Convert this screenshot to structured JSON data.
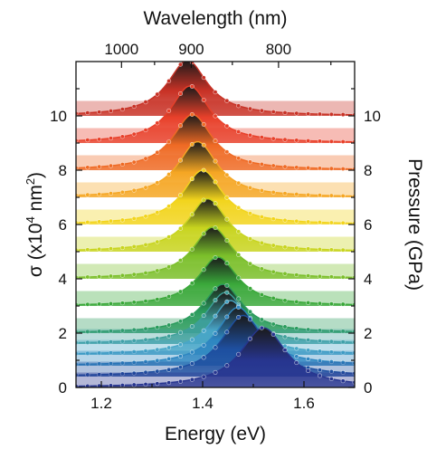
{
  "chart_data": {
    "type": "area",
    "title": "",
    "xlabel": "Energy (eV)",
    "ylabel_left": "σ (x10⁴ nm²)",
    "ylabel_right": "Pressure (GPa)",
    "xlabel_top": "Wavelength (nm)",
    "xlim": [
      1.15,
      1.7
    ],
    "ylim": [
      0,
      12
    ],
    "xticks": [
      1.2,
      1.4,
      1.6
    ],
    "xtick_labels": [
      "1.2",
      "1.4",
      "1.6"
    ],
    "yticks_left": [
      0,
      2,
      4,
      6,
      8,
      10
    ],
    "yticks_left_labels": [
      "0",
      "2",
      "4",
      "6",
      "8",
      "10"
    ],
    "yticks_right": [
      0,
      2,
      4,
      6,
      8,
      10
    ],
    "yticks_right_labels": [
      "0",
      "2",
      "4",
      "6",
      "8",
      "10"
    ],
    "top_axis_ticks_nm": [
      1000,
      900,
      800
    ],
    "top_axis_labels": [
      "1000",
      "900",
      "800"
    ],
    "top_axis_minor_ticks_nm": [
      950,
      850,
      750
    ],
    "grid": false,
    "legend": "none",
    "series": [
      {
        "pressure_gpa": 0.0,
        "baseline": 0.0,
        "peak_ev": 1.52,
        "height": 2.2,
        "fwhm": 0.11,
        "color": "#27358f"
      },
      {
        "pressure_gpa": 0.4,
        "baseline": 0.4,
        "peak_ev": 1.48,
        "height": 2.25,
        "fwhm": 0.105,
        "color": "#1e4fa0"
      },
      {
        "pressure_gpa": 0.8,
        "baseline": 0.8,
        "peak_ev": 1.47,
        "height": 2.15,
        "fwhm": 0.1,
        "color": "#2e86c1"
      },
      {
        "pressure_gpa": 1.2,
        "baseline": 1.2,
        "peak_ev": 1.455,
        "height": 2.0,
        "fwhm": 0.095,
        "color": "#48a6c8"
      },
      {
        "pressure_gpa": 1.6,
        "baseline": 1.6,
        "peak_ev": 1.445,
        "height": 1.9,
        "fwhm": 0.095,
        "color": "#3d9f9a"
      },
      {
        "pressure_gpa": 2.0,
        "baseline": 2.0,
        "peak_ev": 1.44,
        "height": 1.8,
        "fwhm": 0.095,
        "color": "#2a9b5c"
      },
      {
        "pressure_gpa": 3.0,
        "baseline": 3.0,
        "peak_ev": 1.43,
        "height": 1.8,
        "fwhm": 0.095,
        "color": "#3aa83a"
      },
      {
        "pressure_gpa": 4.0,
        "baseline": 4.0,
        "peak_ev": 1.42,
        "height": 1.9,
        "fwhm": 0.095,
        "color": "#7bbf2a"
      },
      {
        "pressure_gpa": 5.0,
        "baseline": 5.0,
        "peak_ev": 1.41,
        "height": 1.95,
        "fwhm": 0.095,
        "color": "#c8d41e"
      },
      {
        "pressure_gpa": 6.0,
        "baseline": 6.0,
        "peak_ev": 1.4,
        "height": 2.0,
        "fwhm": 0.095,
        "color": "#f2d41c"
      },
      {
        "pressure_gpa": 7.0,
        "baseline": 7.0,
        "peak_ev": 1.39,
        "height": 2.05,
        "fwhm": 0.095,
        "color": "#f5a623"
      },
      {
        "pressure_gpa": 8.0,
        "baseline": 8.0,
        "peak_ev": 1.38,
        "height": 2.05,
        "fwhm": 0.095,
        "color": "#ef6a24"
      },
      {
        "pressure_gpa": 9.0,
        "baseline": 9.0,
        "peak_ev": 1.375,
        "height": 2.1,
        "fwhm": 0.095,
        "color": "#e8402a"
      },
      {
        "pressure_gpa": 10.0,
        "baseline": 10.0,
        "peak_ev": 1.37,
        "height": 2.05,
        "fwhm": 0.095,
        "color": "#c83226"
      }
    ]
  }
}
